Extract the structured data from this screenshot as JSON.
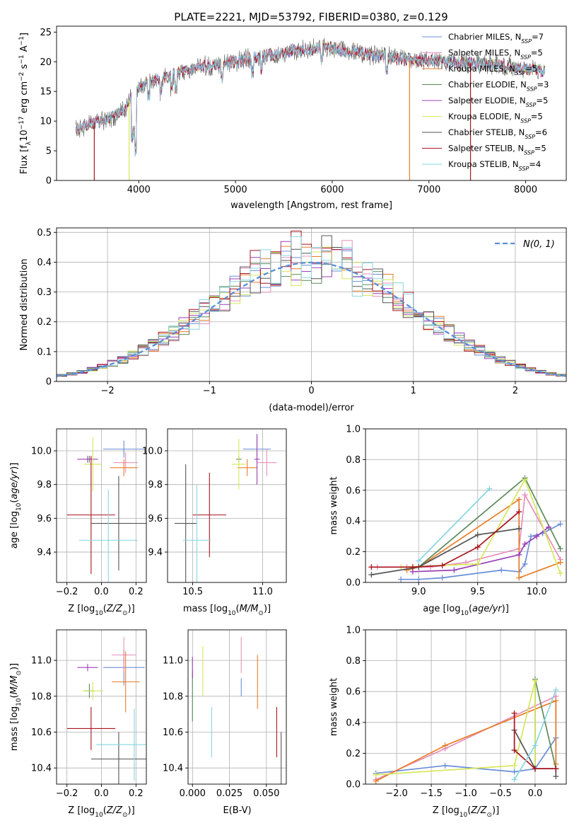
{
  "figure": {
    "title": "PLATE=2221, MJD=53792, FIBERID=0380, z=0.129"
  },
  "colors": {
    "chabrier_miles": "#6a8ed8",
    "salpeter_miles": "#e68fba",
    "kroupa_miles": "#e87d28",
    "chabrier_elodie": "#5c8a5c",
    "salpeter_elodie": "#9a3fb8",
    "kroupa_elodie": "#d6e65a",
    "chabrier_stelib": "#555555",
    "salpeter_stelib": "#a8141c",
    "kroupa_stelib": "#86d6e0",
    "gaussian": "#5a8fd8"
  },
  "chart_data": [
    {
      "id": "spectrum",
      "type": "line",
      "title": "PLATE=2221, MJD=53792, FIBERID=0380, z=0.129",
      "xlabel": "wavelength [Angstrom, rest frame]",
      "ylabel_parts": [
        "Flux [f",
        "λ",
        "10",
        "−17",
        " erg cm",
        "−2",
        " s",
        "−1",
        " A",
        "−1",
        "]"
      ],
      "xlim": [
        3150,
        8420
      ],
      "ylim": [
        0,
        26
      ],
      "xticks": [
        4000,
        5000,
        6000,
        7000,
        8000
      ],
      "yticks": [
        0,
        5,
        10,
        15,
        20,
        25
      ],
      "grid": false,
      "legend_position": "upper right",
      "legend": [
        {
          "label": "Chabrier MILES, N",
          "sub": "SSP",
          "tail": "=7",
          "color_key": "chabrier_miles"
        },
        {
          "label": "Salpeter MILES, N",
          "sub": "SSP",
          "tail": "=5",
          "color_key": "salpeter_miles"
        },
        {
          "label": "Kroupa MILES, N",
          "sub": "SSP",
          "tail": "=5",
          "color_key": "kroupa_miles"
        },
        {
          "label": "Chabrier ELODIE, N",
          "sub": "SSP",
          "tail": "=3",
          "color_key": "chabrier_elodie"
        },
        {
          "label": "Salpeter ELODIE, N",
          "sub": "SSP",
          "tail": "=5",
          "color_key": "salpeter_elodie"
        },
        {
          "label": "Kroupa ELODIE, N",
          "sub": "SSP",
          "tail": "=5",
          "color_key": "kroupa_elodie"
        },
        {
          "label": "Chabrier STELIB, N",
          "sub": "SSP",
          "tail": "=6",
          "color_key": "chabrier_stelib"
        },
        {
          "label": "Salpeter STELIB, N",
          "sub": "SSP",
          "tail": "=5",
          "color_key": "salpeter_stelib"
        },
        {
          "label": "Kroupa STELIB, N",
          "sub": "SSP",
          "tail": "=4",
          "color_key": "kroupa_stelib"
        }
      ],
      "continuum": [
        [
          3350,
          8.5
        ],
        [
          3500,
          9.5
        ],
        [
          3700,
          10.5
        ],
        [
          3850,
          12
        ],
        [
          3950,
          15
        ],
        [
          4100,
          16.5
        ],
        [
          4300,
          17.5
        ],
        [
          4600,
          19
        ],
        [
          5000,
          20
        ],
        [
          5500,
          21.5
        ],
        [
          5900,
          22.5
        ],
        [
          6300,
          21.5
        ],
        [
          6700,
          20.5
        ],
        [
          7200,
          20
        ],
        [
          7700,
          19.5
        ],
        [
          8200,
          18.5
        ]
      ],
      "x_range": [
        3350,
        8200
      ],
      "drops": [
        {
          "x": 3540,
          "color_key": "salpeter_stelib"
        },
        {
          "x": 3900,
          "color_key": "kroupa_elodie"
        },
        {
          "x": 6800,
          "color_key": "kroupa_miles"
        },
        {
          "x": 7430,
          "color_key": "salpeter_stelib"
        }
      ]
    },
    {
      "id": "residuals",
      "type": "histogram",
      "xlabel": "(data-model)/error",
      "ylabel": "Normed distribution",
      "xlim": [
        -2.5,
        2.5
      ],
      "ylim": [
        0,
        0.515
      ],
      "xticks": [
        -2,
        -1,
        0,
        1,
        2
      ],
      "yticks": [
        0.0,
        0.1,
        0.2,
        0.3,
        0.4,
        0.5
      ],
      "grid": true,
      "legend_position": "upper right",
      "legend": [
        {
          "label": "N(0, 1)",
          "color_key": "gaussian"
        }
      ],
      "bin_width": 0.1,
      "series_keys": [
        "chabrier_miles",
        "salpeter_miles",
        "kroupa_miles",
        "chabrier_elodie",
        "salpeter_elodie",
        "kroupa_elodie",
        "chabrier_stelib",
        "salpeter_stelib",
        "kroupa_stelib"
      ]
    },
    {
      "id": "age_vs_Z",
      "type": "errorbar",
      "xlabel": "Z [log10(Z/Z⊙)]",
      "ylabel": "age [log10(age/yr)]",
      "xlim": [
        -0.26,
        0.26
      ],
      "ylim": [
        9.22,
        10.13
      ],
      "xticks": [
        -0.2,
        0.0,
        0.2
      ],
      "xticklabels": [
        "−0.2",
        "0.0",
        "0.2"
      ],
      "yticks": [
        9.4,
        9.6,
        9.8,
        10.0
      ],
      "yticklabels": [
        "9.4",
        "9.6",
        "9.8",
        "10.0"
      ],
      "grid": true,
      "points": [
        {
          "key": "chabrier_miles",
          "x": 0.13,
          "xerr": 0.12,
          "y": 10.01,
          "yerr": 0.05
        },
        {
          "key": "salpeter_miles",
          "x": 0.14,
          "xerr": 0.07,
          "y": 9.93,
          "yerr": 0.06
        },
        {
          "key": "kroupa_miles",
          "x": 0.13,
          "xerr": 0.08,
          "y": 9.9,
          "yerr": 0.05
        },
        {
          "key": "chabrier_elodie",
          "x": -0.07,
          "xerr": 0.03,
          "y": 9.95,
          "yerr": 0.02
        },
        {
          "key": "salpeter_elodie",
          "x": -0.08,
          "xerr": 0.06,
          "y": 9.95,
          "yerr": 0.02
        },
        {
          "key": "kroupa_elodie",
          "x": -0.05,
          "xerr": 0.05,
          "y": 9.92,
          "yerr": 0.16
        },
        {
          "key": "chabrier_stelib",
          "x": 0.1,
          "xerr": 0.16,
          "y": 9.57,
          "yerr": 0.28
        },
        {
          "key": "salpeter_stelib",
          "x": -0.06,
          "xerr": 0.14,
          "y": 9.62,
          "yerr": 0.35
        },
        {
          "key": "kroupa_stelib",
          "x": 0.04,
          "xerr": 0.17,
          "y": 9.47,
          "yerr": 0.3
        }
      ]
    },
    {
      "id": "age_vs_mass",
      "type": "errorbar",
      "xlabel": "mass [log10(M/M⊙)]",
      "ylabel": "",
      "xlim": [
        10.32,
        11.17
      ],
      "ylim": [
        9.22,
        10.13
      ],
      "xticks": [
        10.5,
        11.0
      ],
      "xticklabels": [
        "10.5",
        "11.0"
      ],
      "yticks": [
        9.4,
        9.6,
        9.8,
        10.0
      ],
      "yticklabels": [
        "9.4",
        "9.6",
        "9.8",
        "10.0"
      ],
      "grid": true,
      "points": [
        {
          "key": "chabrier_miles",
          "x": 10.96,
          "xerr": 0.1,
          "y": 10.01,
          "yerr": 0.08
        },
        {
          "key": "salpeter_miles",
          "x": 11.03,
          "xerr": 0.07,
          "y": 9.93,
          "yerr": 0.08
        },
        {
          "key": "kroupa_miles",
          "x": 10.89,
          "xerr": 0.07,
          "y": 9.9,
          "yerr": 0.05
        },
        {
          "key": "chabrier_elodie",
          "x": 10.83,
          "xerr": 0.02,
          "y": 9.95,
          "yerr": 0.02
        },
        {
          "key": "salpeter_elodie",
          "x": 10.96,
          "xerr": 0.02,
          "y": 9.95,
          "yerr": 0.15
        },
        {
          "key": "kroupa_elodie",
          "x": 10.83,
          "xerr": 0.05,
          "y": 9.92,
          "yerr": 0.15
        },
        {
          "key": "chabrier_stelib",
          "x": 10.45,
          "xerr": 0.08,
          "y": 9.57,
          "yerr": 0.35
        },
        {
          "key": "salpeter_stelib",
          "x": 10.62,
          "xerr": 0.12,
          "y": 9.62,
          "yerr": 0.25
        },
        {
          "key": "kroupa_stelib",
          "x": 10.53,
          "xerr": 0.1,
          "y": 9.47,
          "yerr": 0.33
        }
      ]
    },
    {
      "id": "weights_vs_age",
      "type": "line",
      "xlabel": "age [log10(age/yr)]",
      "ylabel": "mass weight",
      "xlim": [
        8.55,
        10.25
      ],
      "ylim": [
        0,
        1.0
      ],
      "xticks": [
        9.0,
        9.5,
        10.0
      ],
      "xticklabels": [
        "9.0",
        "9.5",
        "10.0"
      ],
      "yticks": [
        0.0,
        0.2,
        0.4,
        0.6,
        0.8,
        1.0
      ],
      "yticklabels": [
        "0.0",
        "0.2",
        "0.4",
        "0.6",
        "0.8",
        "1.0"
      ],
      "grid": true,
      "series": [
        {
          "key": "chabrier_miles",
          "x": [
            8.85,
            9.0,
            9.2,
            9.7,
            9.85,
            9.9,
            9.95,
            10.05,
            10.2
          ],
          "y": [
            0.02,
            0.02,
            0.03,
            0.08,
            0.07,
            0.12,
            0.3,
            0.32,
            0.38
          ]
        },
        {
          "key": "salpeter_miles",
          "x": [
            8.65,
            8.9,
            9.1,
            9.4,
            9.85,
            9.9,
            10.2
          ],
          "y": [
            0.1,
            0.1,
            0.1,
            0.13,
            0.22,
            0.57,
            0.15
          ]
        },
        {
          "key": "kroupa_miles",
          "x": [
            8.9,
            9.0,
            9.85,
            9.85,
            10.2
          ],
          "y": [
            0.08,
            0.1,
            0.54,
            0.03,
            0.13
          ]
        },
        {
          "key": "chabrier_elodie",
          "x": [
            9.0,
            9.9,
            10.2
          ],
          "y": [
            0.1,
            0.68,
            0.22
          ]
        },
        {
          "key": "salpeter_elodie",
          "x": [
            8.95,
            9.3,
            9.85,
            9.9,
            10.0,
            10.1
          ],
          "y": [
            0.07,
            0.08,
            0.18,
            0.25,
            0.3,
            0.36
          ]
        },
        {
          "key": "kroupa_elodie",
          "x": [
            8.85,
            9.5,
            9.9,
            10.2
          ],
          "y": [
            0.1,
            0.12,
            0.67,
            0.06
          ]
        },
        {
          "key": "chabrier_stelib",
          "x": [
            8.6,
            9.0,
            9.5,
            9.85,
            9.85
          ],
          "y": [
            0.05,
            0.1,
            0.31,
            0.35,
            0.35
          ]
        },
        {
          "key": "salpeter_stelib",
          "x": [
            8.6,
            8.95,
            9.2,
            9.5,
            9.85
          ],
          "y": [
            0.1,
            0.1,
            0.11,
            0.23,
            0.46
          ]
        },
        {
          "key": "kroupa_stelib",
          "x": [
            9.0,
            9.6
          ],
          "y": [
            0.14,
            0.61
          ]
        }
      ]
    },
    {
      "id": "mass_vs_Z",
      "type": "errorbar",
      "xlabel": "Z [log10(Z/Z⊙)]",
      "ylabel": "mass [log10(M/M⊙)]",
      "xlim": [
        -0.26,
        0.26
      ],
      "ylim": [
        10.31,
        11.17
      ],
      "xticks": [
        -0.2,
        0.0,
        0.2
      ],
      "xticklabels": [
        "−0.2",
        "0.0",
        "0.2"
      ],
      "yticks": [
        10.4,
        10.6,
        10.8,
        11.0
      ],
      "yticklabels": [
        "10.4",
        "10.6",
        "10.8",
        "11.0"
      ],
      "grid": true,
      "points": [
        {
          "key": "chabrier_miles",
          "x": 0.13,
          "xerr": 0.12,
          "y": 10.96,
          "yerr": 0.1
        },
        {
          "key": "salpeter_miles",
          "x": 0.13,
          "xerr": 0.07,
          "y": 11.03,
          "yerr": 0.1
        },
        {
          "key": "kroupa_miles",
          "x": 0.14,
          "xerr": 0.08,
          "y": 10.88,
          "yerr": 0.17
        },
        {
          "key": "chabrier_elodie",
          "x": -0.07,
          "xerr": 0.03,
          "y": 10.83,
          "yerr": 0.04
        },
        {
          "key": "salpeter_elodie",
          "x": -0.08,
          "xerr": 0.06,
          "y": 10.96,
          "yerr": 0.02
        },
        {
          "key": "kroupa_elodie",
          "x": -0.05,
          "xerr": 0.06,
          "y": 10.83,
          "yerr": 0.05
        },
        {
          "key": "chabrier_stelib",
          "x": 0.1,
          "xerr": 0.16,
          "y": 10.45,
          "yerr": 0.15
        },
        {
          "key": "salpeter_stelib",
          "x": -0.06,
          "xerr": 0.14,
          "y": 10.62,
          "yerr": 0.12
        },
        {
          "key": "kroupa_stelib",
          "x": 0.19,
          "xerr": 0.22,
          "y": 10.53,
          "yerr": 0.2
        }
      ]
    },
    {
      "id": "mass_vs_ebv",
      "type": "errorbar",
      "xlabel": "E(B-V)",
      "ylabel": "",
      "xlim": [
        -0.003,
        0.0635
      ],
      "ylim": [
        10.31,
        11.17
      ],
      "xticks": [
        0.0,
        0.025,
        0.05
      ],
      "xticklabels": [
        "0.000",
        "0.025",
        "0.050"
      ],
      "yticks": [
        10.4,
        10.6,
        10.8,
        11.0
      ],
      "yticklabels": [
        "10.4",
        "10.6",
        "10.8",
        "11.0"
      ],
      "grid": true,
      "points": [
        {
          "key": "chabrier_miles",
          "x": 0.033,
          "xerr": 0,
          "y": 10.85,
          "yerr": 0.05
        },
        {
          "key": "salpeter_miles",
          "x": 0.033,
          "xerr": 0,
          "y": 11.03,
          "yerr": 0.1
        },
        {
          "key": "kroupa_miles",
          "x": 0.044,
          "xerr": 0,
          "y": 10.88,
          "yerr": 0.15
        },
        {
          "key": "chabrier_elodie",
          "x": 0.0,
          "xerr": 0,
          "y": 10.8,
          "yerr": 0.14
        },
        {
          "key": "salpeter_elodie",
          "x": 0.0,
          "xerr": 0,
          "y": 10.96,
          "yerr": 0.06
        },
        {
          "key": "kroupa_elodie",
          "x": 0.007,
          "xerr": 0,
          "y": 10.94,
          "yerr": 0.14
        },
        {
          "key": "chabrier_stelib",
          "x": 0.06,
          "xerr": 0,
          "y": 10.45,
          "yerr": 0.15
        },
        {
          "key": "salpeter_stelib",
          "x": 0.057,
          "xerr": 0,
          "y": 10.6,
          "yerr": 0.14
        },
        {
          "key": "kroupa_stelib",
          "x": 0.013,
          "xerr": 0,
          "y": 10.6,
          "yerr": 0.14
        }
      ]
    },
    {
      "id": "weights_vs_Z",
      "type": "line",
      "xlabel": "Z [log10(Z/Z⊙)]",
      "ylabel": "mass weight",
      "xlim": [
        -2.45,
        0.45
      ],
      "ylim": [
        0,
        1.0
      ],
      "xticks": [
        -2.0,
        -1.5,
        -1.0,
        -0.5,
        0.0
      ],
      "xticklabels": [
        "−2.0",
        "−1.5",
        "−1.0",
        "−0.5",
        "0.0"
      ],
      "yticks": [
        0.0,
        0.2,
        0.4,
        0.6,
        0.8,
        1.0
      ],
      "yticklabels": [
        "0.0",
        "0.2",
        "0.4",
        "0.6",
        "0.8",
        "1.0"
      ],
      "grid": true,
      "series": [
        {
          "key": "chabrier_miles",
          "x": [
            -2.3,
            -1.3,
            -0.3,
            0.0,
            0.3,
            0.3
          ],
          "y": [
            0.07,
            0.12,
            0.08,
            0.1,
            0.3,
            0.3
          ]
        },
        {
          "key": "salpeter_miles",
          "x": [
            -2.3,
            -1.3,
            0.3,
            0.3
          ],
          "y": [
            0.03,
            0.23,
            0.57,
            0.1
          ]
        },
        {
          "key": "kroupa_miles",
          "x": [
            -2.3,
            -1.3,
            0.3,
            0.3
          ],
          "y": [
            0.02,
            0.25,
            0.54,
            0.13
          ]
        },
        {
          "key": "chabrier_elodie",
          "x": [
            0.0,
            0.0,
            0.3
          ],
          "y": [
            0.1,
            0.68,
            0.1
          ]
        },
        {
          "key": "salpeter_elodie",
          "x": [
            0.0,
            0.3
          ],
          "y": [
            0.1,
            0.1
          ]
        },
        {
          "key": "kroupa_elodie",
          "x": [
            -2.3,
            -0.3,
            0.0,
            0.0
          ],
          "y": [
            0.06,
            0.12,
            0.67,
            0.1
          ]
        },
        {
          "key": "chabrier_stelib",
          "x": [
            -0.3,
            0.0,
            0.3,
            0.3
          ],
          "y": [
            0.35,
            0.1,
            0.1,
            0.05
          ]
        },
        {
          "key": "salpeter_stelib",
          "x": [
            -0.3,
            -0.3,
            0.0,
            0.3
          ],
          "y": [
            0.46,
            0.22,
            0.1,
            0.1
          ]
        },
        {
          "key": "kroupa_stelib",
          "x": [
            -0.3,
            0.0,
            0.3
          ],
          "y": [
            0.03,
            0.25,
            0.61
          ]
        }
      ]
    }
  ]
}
